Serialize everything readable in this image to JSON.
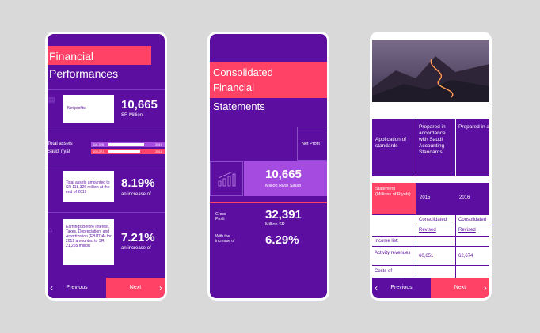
{
  "colors": {
    "purple": "#5b0ea0",
    "pink": "#ff4266",
    "lilac": "#a64be0"
  },
  "phone1": {
    "title_line1": "Financial",
    "title_line2": "Performances",
    "net_profits_label": "Net profits",
    "net_profits_value": "10,665",
    "net_profits_unit": "SR Million",
    "total_assets_label": "Total assets",
    "total_assets_unit": "Saudi riyal",
    "bar1_value": "118,326",
    "bar1_year": "2019",
    "bar2_value": "109,371",
    "bar2_year": "2018",
    "card2_text": "Total assets amounted to SR 118,326 million at the end of 2019",
    "card2_value": "8.19%",
    "card2_sub": "an increase of",
    "card3_text": "Earnings Before Interest, Taxes, Depreciation, and Amortization (EBITDA) for 2019 amounted to SR 21,265 million",
    "card3_value": "7.21%",
    "card3_sub": "an increase of",
    "prev_label": "Previous",
    "next_label": "Next"
  },
  "phone2": {
    "title_line1": "Consolidated",
    "title_line2": "Financial",
    "title_line3": "Statements",
    "net_profit_label": "Net Profit",
    "net_profit_value": "10,665",
    "net_profit_unit": "Million Riyal Saudi",
    "gross_label": "Gross Profit",
    "gross_value": "32,391",
    "gross_unit": "Million SR",
    "increase_label": "With the increase of",
    "increase_value": "6.29%"
  },
  "phone3": {
    "app_standards": "Application of standards",
    "col1_text": "Prepared in accordance with Saudi Accounting Standards",
    "col2_text": "Prepared in accordance with Financial Reporting approved standards in Saudi Arabia",
    "statement_label": "Statement (Millions of Riyals)",
    "year1": "2015",
    "year2": "2016",
    "consolidated1": "Consolidated",
    "consolidated2": "Consolidated",
    "revised1": "Revised",
    "revised2": "Revised",
    "income_list": "Income list:",
    "activity_revenues": "Activity revenues",
    "rev1": "60,651",
    "rev2": "62,674",
    "costs_of": "Costs of",
    "prev_label": "Previous",
    "next_label": "Next"
  }
}
